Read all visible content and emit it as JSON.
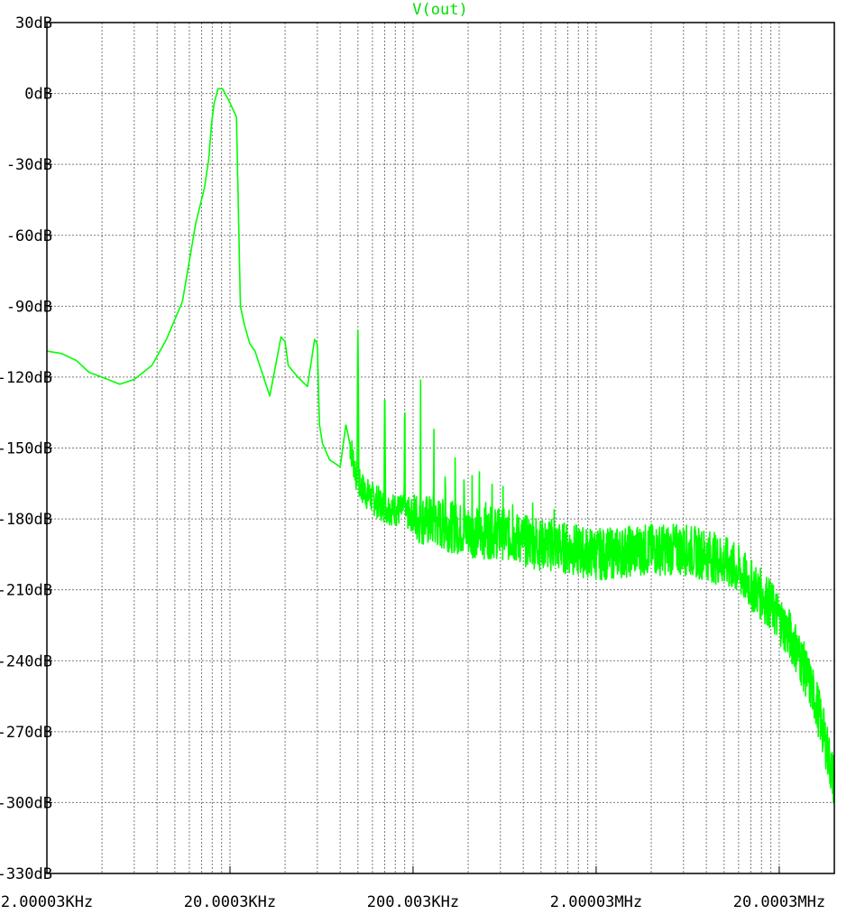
{
  "chart_data": {
    "type": "line",
    "title": "V(out)",
    "x_scale": "log",
    "xlim": [
      2000.03,
      40000600
    ],
    "ylim": [
      -330,
      30
    ],
    "y_unit": "dB",
    "grid": true,
    "line_color": "#00ff00",
    "x_tick_labels": [
      "2.00003KHz",
      "20.0003KHz",
      "200.003KHz",
      "2.00003MHz",
      "20.0003MHz"
    ],
    "x_tick_values": [
      2000.03,
      20000.3,
      200003,
      2000030,
      20000300
    ],
    "y_tick_labels": [
      "30dB",
      "0dB",
      "-30dB",
      "-60dB",
      "-90dB",
      "-120dB",
      "-150dB",
      "-180dB",
      "-210dB",
      "-240dB",
      "-270dB",
      "-300dB",
      "-330dB"
    ],
    "y_tick_values": [
      30,
      0,
      -30,
      -60,
      -90,
      -120,
      -150,
      -180,
      -210,
      -240,
      -270,
      -300,
      -330
    ],
    "series": [
      {
        "name": "V(out)",
        "x": [
          2000,
          2400,
          2900,
          3400,
          4000,
          5000,
          6000,
          7500,
          9000,
          11000,
          13000,
          14500,
          15300,
          15900,
          16400,
          17200,
          18200,
          20000,
          21700,
          22800,
          24000,
          25700,
          27400,
          33000,
          38000,
          40000,
          41600,
          43500,
          47000,
          53000,
          58000,
          60000,
          61600,
          64000,
          70000,
          80000,
          86000,
          100000,
          114000,
          140000,
          180000,
          220000,
          280000,
          350000,
          450000,
          600000,
          800000,
          1000000,
          1300000,
          1700000,
          2200000,
          2800000,
          3500000,
          4500000,
          6000000,
          8000000,
          10000000,
          12000000,
          14000000,
          17000000,
          20000000,
          24000000,
          28000000,
          32000000,
          36000000,
          40000000
        ],
        "y": [
          -109,
          -110,
          -113,
          -118,
          -120,
          -123,
          -121,
          -115,
          -104,
          -88,
          -55,
          -40,
          -28,
          -12,
          -4,
          2,
          2,
          -4,
          -10,
          -90,
          -98,
          -106,
          -109,
          -128,
          -103,
          -105,
          -115,
          -117,
          -120,
          -124,
          -104,
          -106,
          -140,
          -148,
          -155,
          -158,
          -140,
          -165,
          -170,
          -175,
          -177,
          -180,
          -182,
          -184,
          -186,
          -186,
          -189,
          -191,
          -192,
          -194,
          -195,
          -194,
          -193,
          -193,
          -193,
          -195,
          -198,
          -202,
          -208,
          -214,
          -222,
          -232,
          -245,
          -258,
          -275,
          -292
        ]
      }
    ]
  }
}
